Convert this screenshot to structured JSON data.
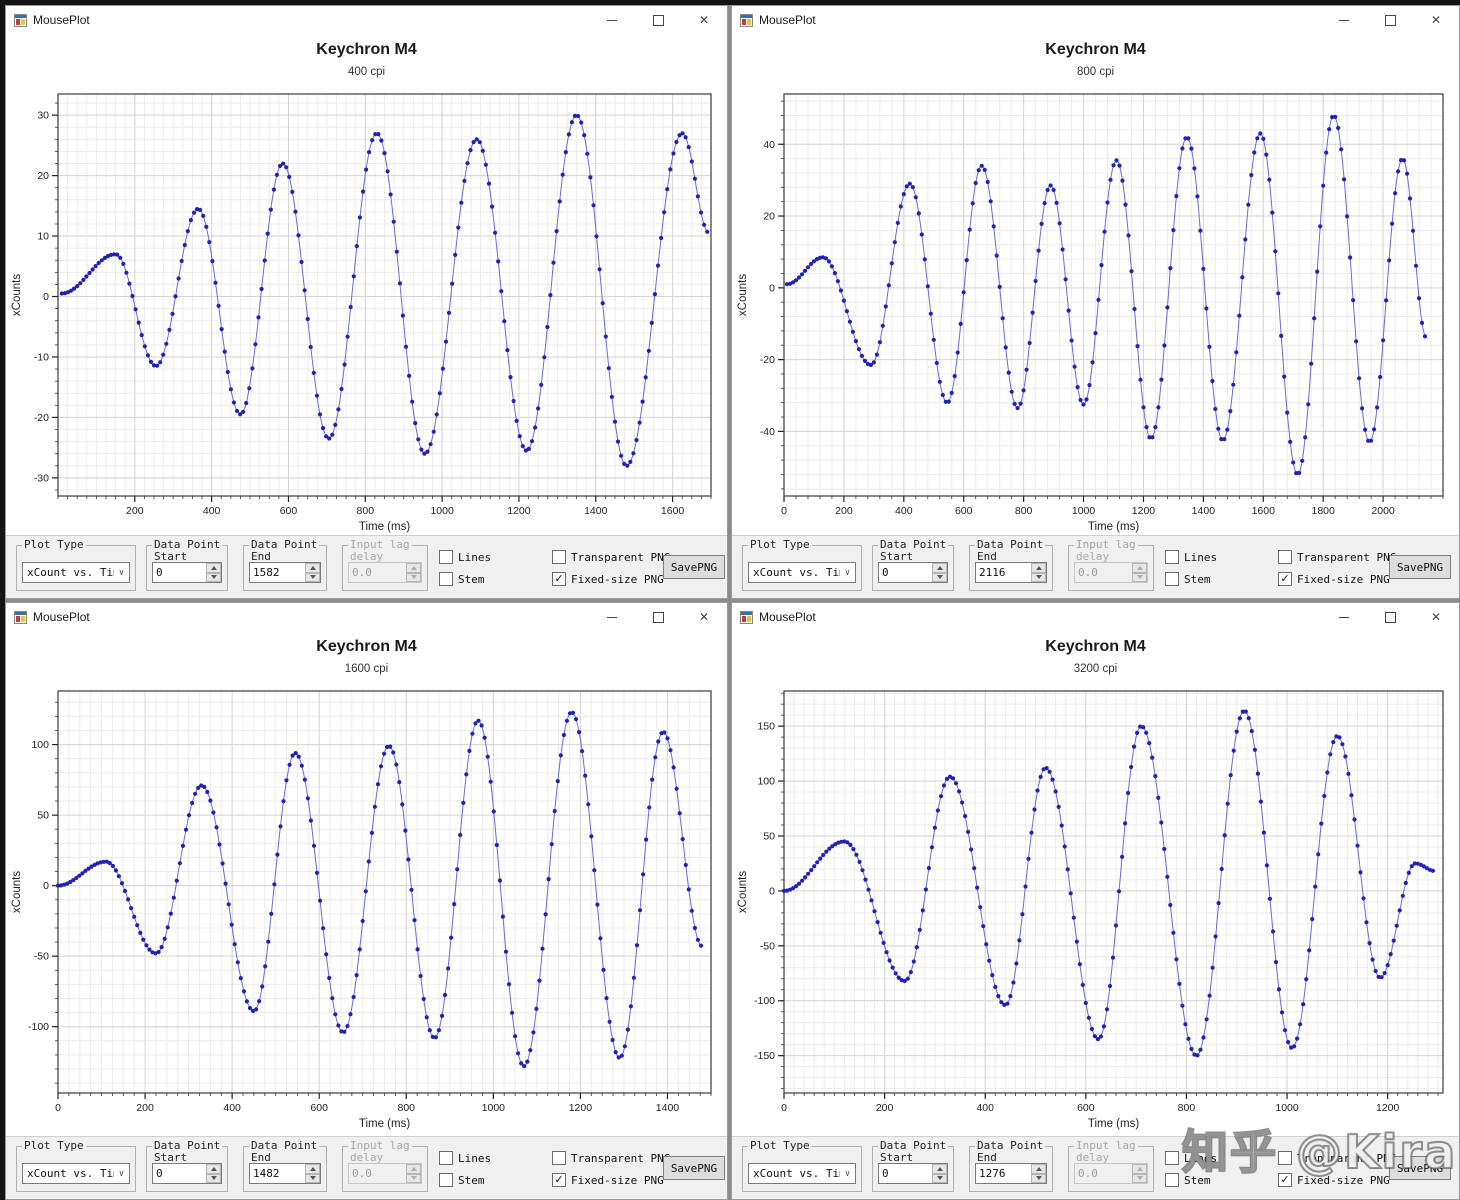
{
  "watermark": "知乎 @Kira",
  "app": {
    "title": "MousePlot"
  },
  "controls": {
    "plot_type_label": "Plot Type",
    "dp_start_l1": "Data Point",
    "dp_start_l2": "Start",
    "dp_end_l1": "Data Point",
    "dp_end_l2": "End",
    "lag_l1": "Input lag",
    "lag_l2": "delay",
    "lines_label": "Lines",
    "stem_label": "Stem",
    "transparent_label": "Transparent PNG",
    "fixed_label": "Fixed-size PNG",
    "save_label": "SavePNG",
    "check_glyph": "✓"
  },
  "windows": [
    {
      "title": "MousePlot",
      "chart_title": "Keychron M4",
      "chart_subtitle": "400 cpi",
      "plot_type": "xCount vs. Time",
      "data_point_start": "0",
      "data_point_end": "1582",
      "input_lag_delay": "0.0",
      "lines": false,
      "stem": false,
      "transparent_png": false,
      "fixed_size_png": true
    },
    {
      "title": "MousePlot",
      "chart_title": "Keychron M4",
      "chart_subtitle": "800 cpi",
      "plot_type": "xCount vs. Time",
      "data_point_start": "0",
      "data_point_end": "2116",
      "input_lag_delay": "0.0",
      "lines": false,
      "stem": false,
      "transparent_png": false,
      "fixed_size_png": true
    },
    {
      "title": "MousePlot",
      "chart_title": "Keychron M4",
      "chart_subtitle": "1600 cpi",
      "plot_type": "xCount vs. Time",
      "data_point_start": "0",
      "data_point_end": "1482",
      "input_lag_delay": "0.0",
      "lines": false,
      "stem": false,
      "transparent_png": false,
      "fixed_size_png": true
    },
    {
      "title": "MousePlot",
      "chart_title": "Keychron M4",
      "chart_subtitle": "3200 cpi",
      "plot_type": "xCount vs. Time",
      "data_point_start": "0",
      "data_point_end": "1276",
      "input_lag_delay": "0.0",
      "lines": false,
      "stem": false,
      "transparent_png": false,
      "fixed_size_png": true
    }
  ],
  "chart_data": [
    {
      "type": "scatter",
      "title": "Keychron M4",
      "subtitle": "400 cpi",
      "xlabel": "Time (ms)",
      "ylabel": "xCounts",
      "xlim": [
        0,
        1700
      ],
      "ylim": [
        -33,
        33.5
      ],
      "xticks": [
        200,
        400,
        600,
        800,
        1000,
        1200,
        1400,
        1600
      ],
      "yticks": [
        -30,
        -20,
        -10,
        0,
        10,
        20,
        30
      ],
      "x_minor": 25,
      "y_minor": 2,
      "grid": true,
      "legend": "none",
      "marker_color": "#2222b2",
      "line_color": "#5b5bcc",
      "marker_step_ms": 8,
      "extrema_points_t_y": [
        [
          10,
          0.5
        ],
        [
          150,
          7
        ],
        [
          255,
          -11.5
        ],
        [
          365,
          14.5
        ],
        [
          475,
          -19.5
        ],
        [
          585,
          22
        ],
        [
          705,
          -23.5
        ],
        [
          830,
          27
        ],
        [
          955,
          -26
        ],
        [
          1090,
          26
        ],
        [
          1220,
          -25.5
        ],
        [
          1350,
          30
        ],
        [
          1480,
          -28
        ],
        [
          1625,
          27
        ],
        [
          1695,
          10.5
        ]
      ]
    },
    {
      "type": "scatter",
      "title": "Keychron M4",
      "subtitle": "800 cpi",
      "xlabel": "Time (ms)",
      "ylabel": "xCounts",
      "xlim": [
        0,
        2200
      ],
      "ylim": [
        -58,
        54
      ],
      "xticks": [
        0,
        200,
        400,
        600,
        800,
        1000,
        1200,
        1400,
        1600,
        1800,
        2000
      ],
      "yticks": [
        -40,
        -20,
        0,
        20,
        40
      ],
      "x_minor": 40,
      "y_minor": 4,
      "grid": true,
      "legend": "none",
      "marker_color": "#2222b2",
      "line_color": "#5b5bcc",
      "marker_step_ms": 10,
      "extrema_points_t_y": [
        [
          10,
          1
        ],
        [
          130,
          8.5
        ],
        [
          290,
          -21.5
        ],
        [
          420,
          29
        ],
        [
          545,
          -32
        ],
        [
          660,
          34
        ],
        [
          780,
          -33.5
        ],
        [
          890,
          28.5
        ],
        [
          1000,
          -32.5
        ],
        [
          1110,
          35.5
        ],
        [
          1225,
          -42
        ],
        [
          1345,
          42
        ],
        [
          1465,
          -42.5
        ],
        [
          1590,
          43
        ],
        [
          1715,
          -52
        ],
        [
          1835,
          48
        ],
        [
          1955,
          -43
        ],
        [
          2065,
          36
        ],
        [
          2145,
          -14
        ]
      ]
    },
    {
      "type": "scatter",
      "title": "Keychron M4",
      "subtitle": "1600 cpi",
      "xlabel": "Time (ms)",
      "ylabel": "xCounts",
      "xlim": [
        0,
        1500
      ],
      "ylim": [
        -147,
        138
      ],
      "xticks": [
        0,
        200,
        400,
        600,
        800,
        1000,
        1200,
        1400
      ],
      "yticks": [
        -100,
        -50,
        0,
        50,
        100
      ],
      "x_minor": 25,
      "y_minor": 10,
      "grid": true,
      "legend": "none",
      "marker_color": "#2222b2",
      "line_color": "#5b5bcc",
      "marker_step_ms": 7,
      "extrema_points_t_y": [
        [
          0,
          0
        ],
        [
          110,
          17
        ],
        [
          225,
          -48
        ],
        [
          330,
          71
        ],
        [
          450,
          -89
        ],
        [
          545,
          94
        ],
        [
          655,
          -104
        ],
        [
          760,
          99
        ],
        [
          865,
          -108
        ],
        [
          965,
          117
        ],
        [
          1070,
          -128
        ],
        [
          1180,
          123
        ],
        [
          1290,
          -122
        ],
        [
          1390,
          109
        ],
        [
          1480,
          -43
        ]
      ]
    },
    {
      "type": "scatter",
      "title": "Keychron M4",
      "subtitle": "3200 cpi",
      "xlabel": "Time (ms)",
      "ylabel": "xCounts",
      "xlim": [
        0,
        1310
      ],
      "ylim": [
        -184,
        182
      ],
      "xticks": [
        0,
        200,
        400,
        600,
        800,
        1000,
        1200
      ],
      "yticks": [
        -150,
        -100,
        -50,
        0,
        50,
        100,
        150
      ],
      "x_minor": 20,
      "y_minor": 10,
      "grid": true,
      "legend": "none",
      "marker_color": "#2222b2",
      "line_color": "#5b5bcc",
      "marker_step_ms": 6,
      "extrema_points_t_y": [
        [
          0,
          0
        ],
        [
          120,
          45
        ],
        [
          240,
          -82
        ],
        [
          330,
          104
        ],
        [
          440,
          -104
        ],
        [
          520,
          112
        ],
        [
          625,
          -135
        ],
        [
          710,
          150
        ],
        [
          820,
          -150
        ],
        [
          915,
          164
        ],
        [
          1010,
          -143
        ],
        [
          1100,
          141
        ],
        [
          1185,
          -79
        ],
        [
          1255,
          25
        ],
        [
          1295,
          18
        ]
      ]
    }
  ]
}
